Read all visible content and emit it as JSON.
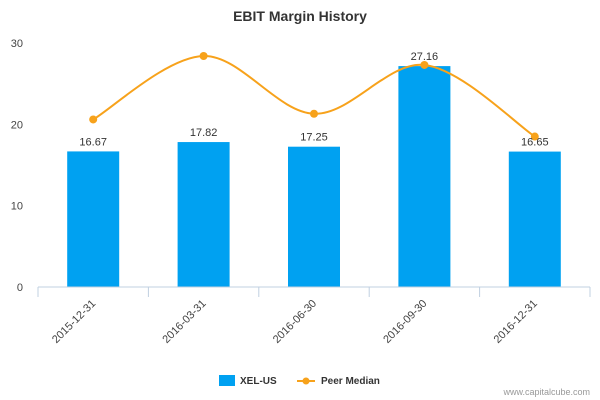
{
  "chart_data": {
    "type": "bar",
    "title": "EBIT Margin History",
    "categories": [
      "2015-12-31",
      "2016-03-31",
      "2016-06-30",
      "2016-09-30",
      "2016-12-31"
    ],
    "series": [
      {
        "name": "XEL-US",
        "type": "bar",
        "values": [
          16.67,
          17.82,
          17.25,
          27.16,
          16.65
        ],
        "data_labels": [
          "16.67",
          "17.82",
          "17.25",
          "27.16",
          "16.65"
        ],
        "color": "#00A1F1"
      },
      {
        "name": "Peer Median",
        "type": "line",
        "values": [
          20.6,
          28.4,
          21.3,
          27.3,
          18.5
        ],
        "color": "#F7A21B"
      }
    ],
    "ylim": [
      0,
      30
    ],
    "yticks": [
      0,
      10,
      20,
      30
    ],
    "grid": false,
    "legend_position": "bottom"
  },
  "credit": "www.capitalcube.com"
}
